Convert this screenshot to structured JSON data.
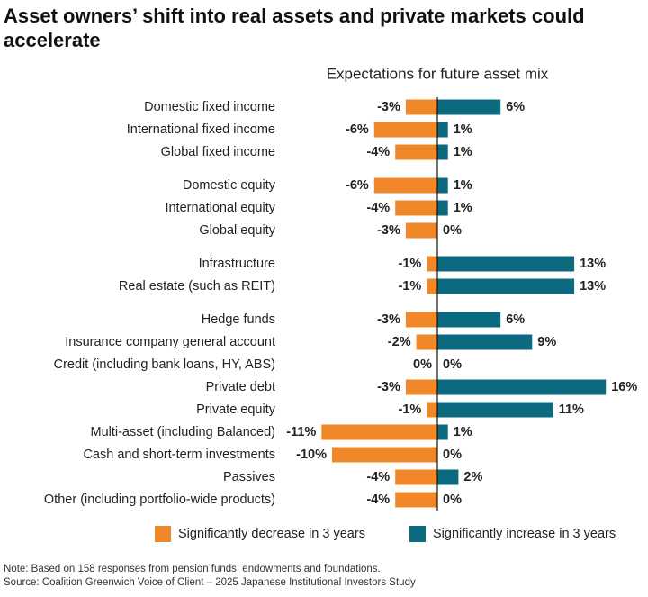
{
  "chart_data": {
    "type": "bar",
    "orientation": "horizontal",
    "title": "Asset owners’ shift into real assets and private markets could accelerate",
    "subtitle": "Expectations for future asset mix",
    "categories": [
      "Domestic fixed income",
      "International fixed income",
      "Global fixed income",
      "Domestic equity",
      "International equity",
      "Global equity",
      "Infrastructure",
      "Real estate (such as REIT)",
      "Hedge funds",
      "Insurance company general account",
      "Credit (including bank loans, HY, ABS)",
      "Private debt",
      "Private equity",
      "Multi-asset (including Balanced)",
      "Cash and short-term investments",
      "Passives",
      "Other (including portfolio-wide products)"
    ],
    "series": [
      {
        "name": "Significantly decrease in 3 years",
        "color": "#f0882a",
        "values": [
          -3,
          -6,
          -4,
          -6,
          -4,
          -3,
          -1,
          -1,
          -3,
          -2,
          0,
          -3,
          -1,
          -11,
          -10,
          -4,
          -4
        ],
        "value_labels": [
          "-3%",
          "-6%",
          "-4%",
          "-6%",
          "-4%",
          "-3%",
          "-1%",
          "-1%",
          "-3%",
          "-2%",
          "0%",
          "-3%",
          "-1%",
          "-11%",
          "-10%",
          "-4%",
          "-4%"
        ]
      },
      {
        "name": "Significantly increase in 3 years",
        "color": "#0b6a80",
        "values": [
          6,
          1,
          1,
          1,
          1,
          0,
          13,
          13,
          6,
          9,
          0,
          16,
          11,
          1,
          0,
          2,
          0
        ],
        "value_labels": [
          "6%",
          "1%",
          "1%",
          "1%",
          "1%",
          "0%",
          "13%",
          "13%",
          "6%",
          "9%",
          "0%",
          "16%",
          "11%",
          "1%",
          "0%",
          "2%",
          "0%"
        ]
      }
    ],
    "note": "Note: Based on 158 responses from pension funds, endowments and foundations.",
    "source": "Source: Coalition Greenwich Voice of Client – 2025 Japanese Institutional Investors Study"
  }
}
